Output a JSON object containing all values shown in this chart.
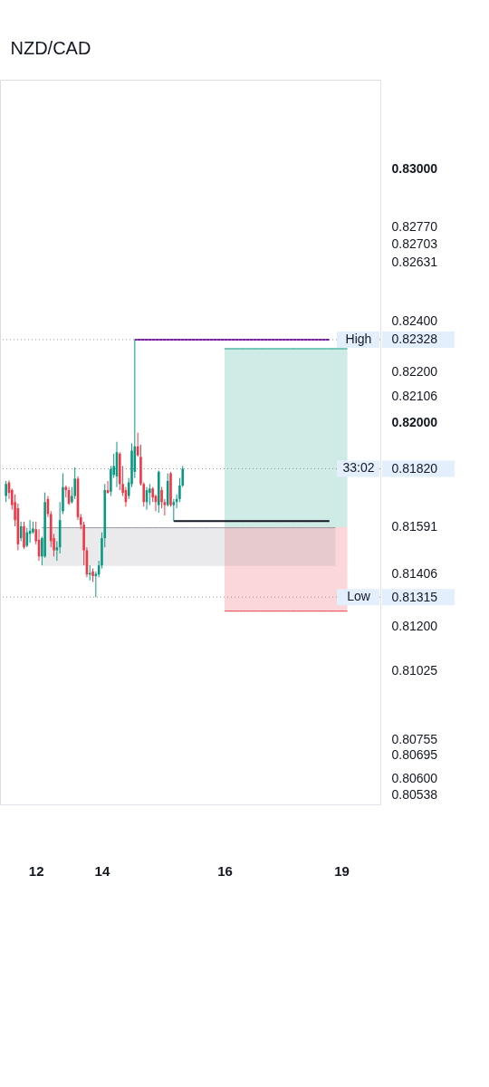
{
  "chart_data": {
    "type": "candlestick",
    "title": "NZD/CAD",
    "categories": [
      null,
      null,
      null,
      null,
      null,
      null,
      null,
      null,
      null,
      null,
      "12",
      null,
      null,
      null,
      null,
      null,
      null,
      null,
      null,
      null,
      null,
      null,
      null,
      null,
      null,
      null,
      null,
      null,
      null,
      null,
      null,
      null,
      "14",
      null,
      null,
      null,
      null,
      null,
      null,
      null,
      null,
      null,
      null,
      null,
      null,
      null,
      null,
      null,
      null,
      null,
      null,
      null,
      null,
      null,
      null,
      null,
      null,
      null,
      null,
      null,
      null,
      null,
      null,
      null,
      null,
      null,
      null,
      null,
      null,
      null,
      null,
      null,
      null,
      "16",
      null,
      null,
      null,
      null,
      null,
      null,
      null,
      null,
      null,
      null,
      null,
      null,
      null,
      null,
      null,
      null,
      null,
      null,
      null,
      null,
      null,
      null,
      null,
      null,
      null,
      null,
      null,
      null,
      null,
      null,
      null,
      null,
      null,
      null,
      null,
      null,
      null,
      null,
      "19",
      null,
      null,
      null,
      null,
      null,
      null,
      null,
      null,
      null,
      null,
      null
    ],
    "ohlc": [
      [
        0.81713,
        0.81772,
        0.81689,
        0.8176
      ],
      [
        0.81766,
        0.81774,
        0.81701,
        0.81725
      ],
      [
        0.81736,
        0.81742,
        0.81659,
        0.81677
      ],
      [
        0.81689,
        0.81719,
        0.81594,
        0.81618
      ],
      [
        0.81665,
        0.81683,
        0.81499,
        0.81523
      ],
      [
        0.81547,
        0.81612,
        0.81535,
        0.81594
      ],
      [
        0.81594,
        0.81612,
        0.81505,
        0.81511
      ],
      [
        0.81517,
        0.81588,
        0.81511,
        0.8157
      ],
      [
        0.81564,
        0.81618,
        0.81529,
        0.81576
      ],
      [
        0.8157,
        0.81612,
        0.81564,
        0.81585
      ],
      [
        0.81582,
        0.81612,
        0.81523,
        0.81535
      ],
      [
        0.81541,
        0.81582,
        0.81458,
        0.81475
      ],
      [
        0.81475,
        0.81553,
        0.8144,
        0.81547
      ],
      [
        0.81475,
        0.81727,
        0.8147,
        0.81689
      ],
      [
        0.81701,
        0.81713,
        0.8163,
        0.81642
      ],
      [
        0.81642,
        0.81653,
        0.81511,
        0.81535
      ],
      [
        0.81547,
        0.81564,
        0.81475,
        0.81499
      ],
      [
        0.81499,
        0.81535,
        0.81458,
        0.81511
      ],
      [
        0.81511,
        0.81689,
        0.81487,
        0.81618
      ],
      [
        0.81653,
        0.81802,
        0.81642,
        0.81748
      ],
      [
        0.81748,
        0.81754,
        0.81707,
        0.81736
      ],
      [
        0.81736,
        0.81748,
        0.81677,
        0.81683
      ],
      [
        0.81689,
        0.81748,
        0.81683,
        0.81713
      ],
      [
        0.81713,
        0.81825,
        0.81701,
        0.81781
      ],
      [
        0.81781,
        0.8179,
        0.81618,
        0.8163
      ],
      [
        0.8163,
        0.81642,
        0.81582,
        0.816
      ],
      [
        0.816,
        0.81612,
        0.8144,
        0.81499
      ],
      [
        0.81499,
        0.81511,
        0.81393,
        0.81404
      ],
      [
        0.81404,
        0.8144,
        0.81381,
        0.8141
      ],
      [
        0.81416,
        0.81428,
        0.81375,
        0.81398
      ],
      [
        0.81398,
        0.81416,
        0.81315,
        0.81407
      ],
      [
        0.81404,
        0.81458,
        0.81393,
        0.8144
      ],
      [
        0.8144,
        0.8157,
        0.81428,
        0.81547
      ],
      [
        0.81547,
        0.8176,
        0.81511,
        0.81736
      ],
      [
        0.81736,
        0.81772,
        0.81722,
        0.81725
      ],
      [
        0.8173,
        0.81831,
        0.81713,
        0.81819
      ],
      [
        0.81796,
        0.81879,
        0.81784,
        0.81831
      ],
      [
        0.8179,
        0.81926,
        0.81748,
        0.81885
      ],
      [
        0.81879,
        0.81885,
        0.81736,
        0.8176
      ],
      [
        0.8176,
        0.81831,
        0.81713,
        0.81725
      ],
      [
        0.81736,
        0.81748,
        0.81671,
        0.81689
      ],
      [
        0.81713,
        0.81784,
        0.81701,
        0.81766
      ],
      [
        0.8176,
        0.8192,
        0.81748,
        0.81891
      ],
      [
        0.81808,
        0.82328,
        0.81784,
        0.81908
      ],
      [
        0.81908,
        0.81962,
        0.81867,
        0.81873
      ],
      [
        0.81867,
        0.81914,
        0.81754,
        0.8176
      ],
      [
        0.8176,
        0.81766,
        0.81671,
        0.81689
      ],
      [
        0.81689,
        0.81748,
        0.81659,
        0.81736
      ],
      [
        0.81725,
        0.8176,
        0.81677,
        0.81742
      ],
      [
        0.81742,
        0.81748,
        0.81689,
        0.81707
      ],
      [
        0.81713,
        0.81719,
        0.81653,
        0.81689
      ],
      [
        0.81677,
        0.81813,
        0.81647,
        0.81808
      ],
      [
        0.81736,
        0.81748,
        0.81665,
        0.81689
      ],
      [
        0.81689,
        0.81701,
        0.81636,
        0.81677
      ],
      [
        0.81677,
        0.81802,
        0.81671,
        0.81772
      ],
      [
        0.81802,
        0.81808,
        0.81671,
        0.81677
      ],
      [
        0.81677,
        0.81701,
        0.81614,
        0.81689
      ],
      [
        0.81689,
        0.81719,
        0.81665,
        0.81701
      ],
      [
        0.81701,
        0.81784,
        0.81689,
        0.81754
      ],
      [
        0.81754,
        0.81831,
        0.81748,
        0.8182
      ],
      null,
      null,
      null,
      null,
      null,
      null,
      null,
      null,
      null,
      null,
      null,
      null,
      null,
      null,
      null,
      null,
      null,
      null,
      null,
      null,
      null,
      null,
      null,
      null,
      null,
      null,
      null,
      null,
      null,
      null,
      null,
      null,
      null,
      null,
      null,
      null,
      null,
      null,
      null,
      null,
      null,
      null,
      null,
      null,
      null,
      null,
      null,
      null,
      null,
      null,
      null,
      null,
      null,
      null,
      null,
      null,
      null,
      null,
      null,
      null,
      null,
      null,
      null,
      null
    ],
    "colors": [
      "#089981",
      "#f23645",
      "#f23645",
      "#f23645",
      "#f23645",
      "#089981",
      "#f23645",
      "#089981",
      "#089981",
      "#089981",
      "#f23645",
      "#f23645",
      "#089981",
      "#089981",
      "#f23645",
      "#f23645",
      "#f23645",
      "#089981",
      "#089981",
      "#089981",
      "#f23645",
      "#f23645",
      "#089981",
      "#089981",
      "#f23645",
      "#f23645",
      "#f23645",
      "#f23645",
      "#089981",
      "#f23645",
      "#089981",
      "#089981",
      "#089981",
      "#089981",
      "#f23645",
      "#089981",
      "#089981",
      "#089981",
      "#f23645",
      "#f23645",
      "#f23645",
      "#089981",
      "#089981",
      "#089981",
      "#f23645",
      "#f23645",
      "#f23645",
      "#089981",
      "#089981",
      "#f23645",
      "#f23645",
      "#089981",
      "#f23645",
      "#f23645",
      "#089981",
      "#f23645",
      "#089981",
      "#089981",
      "#089981",
      "#089981",
      null,
      null,
      null,
      null,
      null,
      null,
      null,
      null,
      null,
      null,
      null,
      null,
      null,
      null,
      null,
      null,
      null,
      null,
      null,
      null,
      null,
      null,
      null,
      null,
      null,
      null,
      null,
      null,
      null,
      null,
      null,
      null,
      null,
      null,
      null,
      null,
      null,
      null,
      null,
      null,
      null,
      null,
      null,
      null,
      null,
      null,
      null,
      null,
      null,
      null,
      null,
      null,
      null,
      null,
      null,
      null,
      null,
      null,
      null,
      null,
      null,
      null,
      null,
      null
    ],
    "series": [
      {
        "type": "line",
        "color": "#089981",
        "values": [
          null,
          null,
          null,
          null,
          null,
          null,
          null,
          null,
          null,
          null,
          null,
          null,
          null,
          null,
          null,
          null,
          null,
          null,
          null,
          null,
          null,
          null,
          null,
          null,
          null,
          null,
          null,
          null,
          null,
          null,
          null,
          null,
          null,
          null,
          null,
          null,
          null,
          null,
          null,
          null,
          null,
          null,
          null,
          null,
          null,
          null,
          null,
          null,
          null,
          null,
          null,
          null,
          null,
          null,
          null,
          null,
          null,
          null,
          null,
          null,
          null,
          null,
          null,
          null,
          null,
          null,
          null,
          null,
          null,
          null,
          null,
          null,
          null,
          0.82292,
          0.82292,
          0.82292,
          0.82292,
          0.82292,
          0.82292,
          0.82292,
          0.82292,
          0.82292,
          0.82292,
          0.82292,
          0.82292,
          0.82292,
          0.82292,
          0.82292,
          0.82292,
          0.82292,
          0.82292,
          0.82292,
          0.82292,
          0.82292,
          0.82292,
          0.82292,
          0.82292,
          0.82292,
          0.82292,
          0.82292,
          0.82292,
          0.82292,
          0.82292,
          0.82292,
          0.82292,
          0.82292,
          0.82292,
          0.82292,
          0.82292,
          0.82292,
          0.82292,
          0.82292,
          0.82292,
          0.82292,
          0.82292,
          null,
          null,
          null,
          null,
          null,
          null,
          null,
          null,
          null
        ],
        "upper": [
          null,
          null,
          null,
          null,
          null,
          null,
          null,
          null,
          null,
          null,
          null,
          null,
          null,
          null,
          null,
          null,
          null,
          null,
          null,
          null,
          null,
          null,
          null,
          null,
          null,
          null,
          null,
          null,
          null,
          null,
          null,
          null,
          null,
          null,
          null,
          null,
          null,
          null,
          null,
          null,
          null,
          null,
          null,
          null,
          null,
          null,
          null,
          null,
          null,
          null,
          null,
          null,
          null,
          null,
          null,
          null,
          null,
          null,
          null,
          null,
          null,
          null,
          null,
          null,
          null,
          null,
          null,
          null,
          null,
          null,
          null,
          null,
          null,
          0.82292,
          0.82292,
          0.82292,
          0.82292,
          0.82292,
          0.82292,
          0.82292,
          0.82292,
          0.82292,
          0.82292,
          0.82292,
          0.82292,
          0.82292,
          0.82292,
          0.82292,
          0.82292,
          0.82292,
          0.82292,
          0.82292,
          0.82292,
          0.82292,
          0.82292,
          0.82292,
          0.82292,
          0.82292,
          0.82292,
          0.82292,
          0.82292,
          0.82292,
          0.82292,
          0.82292,
          0.82292,
          0.82292,
          0.82292,
          0.82292,
          0.82292,
          0.82292,
          0.82292,
          0.82292,
          0.82292,
          0.82292,
          0.82292,
          null,
          null,
          null,
          null,
          null,
          null,
          null,
          null,
          null
        ],
        "lower": [
          null,
          null,
          null,
          null,
          null,
          null,
          null,
          null,
          null,
          null,
          null,
          null,
          null,
          null,
          null,
          null,
          null,
          null,
          null,
          null,
          null,
          null,
          null,
          null,
          null,
          null,
          null,
          null,
          null,
          null,
          null,
          null,
          null,
          null,
          null,
          null,
          null,
          null,
          null,
          null,
          null,
          null,
          null,
          null,
          null,
          null,
          null,
          null,
          null,
          null,
          null,
          null,
          null,
          null,
          null,
          null,
          null,
          null,
          null,
          null,
          null,
          null,
          null,
          null,
          null,
          null,
          null,
          null,
          null,
          null,
          null,
          null,
          null,
          0.81591,
          0.81591,
          0.81591,
          0.81591,
          0.81591,
          0.81591,
          0.81591,
          0.81591,
          0.81591,
          0.81591,
          0.81591,
          0.81591,
          0.81591,
          0.81591,
          0.81591,
          0.81591,
          0.81591,
          0.81591,
          0.81591,
          0.81591,
          0.81591,
          0.81591,
          0.81591,
          0.81591,
          0.81591,
          0.81591,
          0.81591,
          0.81591,
          0.81591,
          0.81591,
          0.81591,
          0.81591,
          0.81591,
          0.81591,
          0.81591,
          0.81591,
          0.81591,
          0.81591,
          0.81591,
          0.81591,
          0.81591,
          0.81591,
          null,
          null,
          null,
          null,
          null,
          null,
          null,
          null,
          null
        ]
      },
      {
        "type": "line",
        "color": "#f23645",
        "values": [
          null,
          null,
          null,
          null,
          null,
          null,
          null,
          null,
          null,
          null,
          null,
          null,
          null,
          null,
          null,
          null,
          null,
          null,
          null,
          null,
          null,
          null,
          null,
          null,
          null,
          null,
          null,
          null,
          null,
          null,
          null,
          null,
          null,
          null,
          null,
          null,
          null,
          null,
          null,
          null,
          null,
          null,
          null,
          null,
          null,
          null,
          null,
          null,
          null,
          null,
          null,
          null,
          null,
          null,
          null,
          null,
          null,
          null,
          null,
          null,
          null,
          null,
          null,
          null,
          null,
          null,
          null,
          null,
          null,
          null,
          null,
          null,
          null,
          0.8126,
          0.8126,
          0.8126,
          0.8126,
          0.8126,
          0.8126,
          0.8126,
          0.8126,
          0.8126,
          0.8126,
          0.8126,
          0.8126,
          0.8126,
          0.8126,
          0.8126,
          0.8126,
          0.8126,
          0.8126,
          0.8126,
          0.8126,
          0.8126,
          0.8126,
          0.8126,
          0.8126,
          0.8126,
          0.8126,
          0.8126,
          0.8126,
          0.8126,
          0.8126,
          0.8126,
          0.8126,
          0.8126,
          0.8126,
          0.8126,
          0.8126,
          0.8126,
          0.8126,
          0.8126,
          0.8126,
          0.8126,
          0.8126,
          null,
          null,
          null,
          null,
          null,
          null,
          null,
          null,
          null
        ],
        "upper": [
          null,
          null,
          null,
          null,
          null,
          null,
          null,
          null,
          null,
          null,
          null,
          null,
          null,
          null,
          null,
          null,
          null,
          null,
          null,
          null,
          null,
          null,
          null,
          null,
          null,
          null,
          null,
          null,
          null,
          null,
          null,
          null,
          null,
          null,
          null,
          null,
          null,
          null,
          null,
          null,
          null,
          null,
          null,
          null,
          null,
          null,
          null,
          null,
          null,
          null,
          null,
          null,
          null,
          null,
          null,
          null,
          null,
          null,
          null,
          null,
          null,
          null,
          null,
          null,
          null,
          null,
          null,
          null,
          null,
          null,
          null,
          null,
          null,
          0.81591,
          0.81591,
          0.81591,
          0.81591,
          0.81591,
          0.81591,
          0.81591,
          0.81591,
          0.81591,
          0.81591,
          0.81591,
          0.81591,
          0.81591,
          0.81591,
          0.81591,
          0.81591,
          0.81591,
          0.81591,
          0.81591,
          0.81591,
          0.81591,
          0.81591,
          0.81591,
          0.81591,
          0.81591,
          0.81591,
          0.81591,
          0.81591,
          0.81591,
          0.81591,
          0.81591,
          0.81591,
          0.81591,
          0.81591,
          0.81591,
          0.81591,
          0.81591,
          0.81591,
          0.81591,
          0.81591,
          0.81591,
          0.81591,
          null,
          null,
          null,
          null,
          null,
          null,
          null,
          null,
          null
        ],
        "lower": [
          null,
          null,
          null,
          null,
          null,
          null,
          null,
          null,
          null,
          null,
          null,
          null,
          null,
          null,
          null,
          null,
          null,
          null,
          null,
          null,
          null,
          null,
          null,
          null,
          null,
          null,
          null,
          null,
          null,
          null,
          null,
          null,
          null,
          null,
          null,
          null,
          null,
          null,
          null,
          null,
          null,
          null,
          null,
          null,
          null,
          null,
          null,
          null,
          null,
          null,
          null,
          null,
          null,
          null,
          null,
          null,
          null,
          null,
          null,
          null,
          null,
          null,
          null,
          null,
          null,
          null,
          null,
          null,
          null,
          null,
          null,
          null,
          null,
          0.8126,
          0.8126,
          0.8126,
          0.8126,
          0.8126,
          0.8126,
          0.8126,
          0.8126,
          0.8126,
          0.8126,
          0.8126,
          0.8126,
          0.8126,
          0.8126,
          0.8126,
          0.8126,
          0.8126,
          0.8126,
          0.8126,
          0.8126,
          0.8126,
          0.8126,
          0.8126,
          0.8126,
          0.8126,
          0.8126,
          0.8126,
          0.8126,
          0.8126,
          0.8126,
          0.8126,
          0.8126,
          0.8126,
          0.8126,
          0.8126,
          0.8126,
          0.8126,
          0.8126,
          0.8126,
          0.8126,
          0.8126,
          0.8126,
          null,
          null,
          null,
          null,
          null,
          null,
          null,
          null,
          null
        ]
      },
      {
        "type": "line",
        "color": "#9598a1",
        "values": [
          null,
          null,
          null,
          null,
          null,
          null,
          null,
          null,
          null,
          null,
          null,
          null,
          0.81588,
          0.81588,
          0.81588,
          0.81588,
          0.81588,
          0.81588,
          0.81588,
          0.81588,
          0.81588,
          0.81588,
          0.81588,
          0.81588,
          0.81588,
          0.81588,
          0.81588,
          0.81588,
          0.81588,
          0.81588,
          0.81588,
          0.81588,
          0.81588,
          0.81588,
          0.81588,
          0.81588,
          0.81588,
          0.81588,
          0.81588,
          0.81588,
          0.81588,
          0.81588,
          0.81588,
          0.81588,
          0.81588,
          0.81588,
          0.81588,
          0.81588,
          0.81588,
          0.81588,
          0.81588,
          0.81588,
          0.81588,
          0.81588,
          0.81588,
          0.81588,
          0.81588,
          0.81588,
          0.81588,
          0.81588,
          0.81588,
          0.81588,
          0.81588,
          0.81588,
          0.81588,
          0.81588,
          0.81588,
          0.81588,
          0.81588,
          0.81588,
          0.81588,
          0.81588,
          0.81588,
          0.81588,
          0.81588,
          0.81588,
          0.81588,
          0.81588,
          0.81588,
          0.81588,
          0.81588,
          0.81588,
          0.81588,
          0.81588,
          0.81588,
          0.81588,
          0.81588,
          0.81588,
          0.81588,
          0.81588,
          0.81588,
          0.81588,
          0.81588,
          0.81588,
          0.81588,
          0.81588,
          0.81588,
          0.81588,
          0.81588,
          0.81588,
          0.81588,
          0.81588,
          0.81588,
          0.81588,
          0.81588,
          0.81588,
          0.81588,
          0.81588,
          0.81588,
          0.81588,
          0.81588,
          null,
          null,
          null,
          null,
          null,
          null,
          null,
          null,
          null,
          null,
          null,
          null,
          null
        ],
        "upper": [
          null,
          null,
          null,
          null,
          null,
          null,
          null,
          null,
          null,
          null,
          null,
          null,
          0.81588,
          0.81588,
          0.81588,
          0.81588,
          0.81588,
          0.81588,
          0.81588,
          0.81588,
          0.81588,
          0.81588,
          0.81588,
          0.81588,
          0.81588,
          0.81588,
          0.81588,
          0.81588,
          0.81588,
          0.81588,
          0.81588,
          0.81588,
          0.81588,
          0.81588,
          0.81588,
          0.81588,
          0.81588,
          0.81588,
          0.81588,
          0.81588,
          0.81588,
          0.81588,
          0.81588,
          0.81588,
          0.81588,
          0.81588,
          0.81588,
          0.81588,
          0.81588,
          0.81588,
          0.81588,
          0.81588,
          0.81588,
          0.81588,
          0.81588,
          0.81588,
          0.81588,
          0.81588,
          0.81588,
          0.81588,
          0.81588,
          0.81588,
          0.81588,
          0.81588,
          0.81588,
          0.81588,
          0.81588,
          0.81588,
          0.81588,
          0.81588,
          0.81588,
          0.81588,
          0.81588,
          0.81588,
          0.81588,
          0.81588,
          0.81588,
          0.81588,
          0.81588,
          0.81588,
          0.81588,
          0.81588,
          0.81588,
          0.81588,
          0.81588,
          0.81588,
          0.81588,
          0.81588,
          0.81588,
          0.81588,
          0.81588,
          0.81588,
          0.81588,
          0.81588,
          0.81588,
          0.81588,
          0.81588,
          0.81588,
          0.81588,
          0.81588,
          0.81588,
          0.81588,
          0.81588,
          0.81588,
          0.81588,
          0.81588,
          0.81588,
          0.81588,
          0.81588,
          0.81588,
          0.81588,
          null,
          null,
          null,
          null,
          null,
          null,
          null,
          null,
          null,
          null,
          null,
          null,
          null
        ],
        "lower": [
          null,
          null,
          null,
          null,
          null,
          null,
          null,
          null,
          null,
          null,
          null,
          null,
          0.81438,
          0.81438,
          0.81438,
          0.81438,
          0.81438,
          0.81438,
          0.81438,
          0.81438,
          0.81438,
          0.81438,
          0.81438,
          0.81438,
          0.81438,
          0.81438,
          0.81438,
          0.81438,
          0.81438,
          0.81438,
          0.81438,
          0.81438,
          0.81438,
          0.81438,
          0.81438,
          0.81438,
          0.81438,
          0.81438,
          0.81438,
          0.81438,
          0.81438,
          0.81438,
          0.81438,
          0.81438,
          0.81438,
          0.81438,
          0.81438,
          0.81438,
          0.81438,
          0.81438,
          0.81438,
          0.81438,
          0.81438,
          0.81438,
          0.81438,
          0.81438,
          0.81438,
          0.81438,
          0.81438,
          0.81438,
          0.81438,
          0.81438,
          0.81438,
          0.81438,
          0.81438,
          0.81438,
          0.81438,
          0.81438,
          0.81438,
          0.81438,
          0.81438,
          0.81438,
          0.81438,
          0.81438,
          0.81438,
          0.81438,
          0.81438,
          0.81438,
          0.81438,
          0.81438,
          0.81438,
          0.81438,
          0.81438,
          0.81438,
          0.81438,
          0.81438,
          0.81438,
          0.81438,
          0.81438,
          0.81438,
          0.81438,
          0.81438,
          0.81438,
          0.81438,
          0.81438,
          0.81438,
          0.81438,
          0.81438,
          0.81438,
          0.81438,
          0.81438,
          0.81438,
          0.81438,
          0.81438,
          0.81438,
          0.81438,
          0.81438,
          0.81438,
          0.81438,
          0.81438,
          0.81438,
          null,
          null,
          null,
          null,
          null,
          null,
          null,
          null,
          null,
          null,
          null,
          null,
          null
        ]
      },
      {
        "type": "line",
        "color": "#7b1fa2",
        "values": [
          null,
          null,
          null,
          null,
          null,
          null,
          null,
          null,
          null,
          null,
          null,
          null,
          null,
          null,
          null,
          null,
          null,
          null,
          null,
          null,
          null,
          null,
          null,
          null,
          null,
          null,
          null,
          null,
          null,
          null,
          null,
          null,
          null,
          null,
          null,
          null,
          null,
          null,
          null,
          null,
          null,
          null,
          null,
          0.82328,
          0.82328,
          0.82328,
          0.82328,
          0.82328,
          0.82328,
          0.82328,
          0.82328,
          0.82328,
          0.82328,
          0.82328,
          0.82328,
          0.82328,
          0.82328,
          0.82328,
          0.82328,
          0.82328,
          0.82328,
          0.82328,
          0.82328,
          0.82328,
          0.82328,
          0.82328,
          0.82328,
          0.82328,
          0.82328,
          0.82328,
          0.82328,
          0.82328,
          0.82328,
          0.82328,
          0.82328,
          0.82328,
          0.82328,
          0.82328,
          0.82328,
          0.82328,
          0.82328,
          0.82328,
          0.82328,
          0.82328,
          0.82328,
          0.82328,
          0.82328,
          0.82328,
          0.82328,
          0.82328,
          0.82328,
          0.82328,
          0.82328,
          0.82328,
          0.82328,
          0.82328,
          0.82328,
          0.82328,
          0.82328,
          0.82328,
          0.82328,
          0.82328,
          0.82328,
          0.82328,
          0.82328,
          0.82328,
          0.82328,
          0.82328,
          0.82328,
          null,
          null,
          null,
          null,
          null,
          null,
          null,
          null,
          null,
          null,
          null,
          null,
          null,
          null,
          null
        ]
      },
      {
        "type": "line",
        "color": "#131722",
        "values": [
          null,
          null,
          null,
          null,
          null,
          null,
          null,
          null,
          null,
          null,
          null,
          null,
          null,
          null,
          null,
          null,
          null,
          null,
          null,
          null,
          null,
          null,
          null,
          null,
          null,
          null,
          null,
          null,
          null,
          null,
          null,
          null,
          null,
          null,
          null,
          null,
          null,
          null,
          null,
          null,
          null,
          null,
          null,
          null,
          null,
          null,
          null,
          null,
          null,
          null,
          null,
          null,
          null,
          null,
          null,
          null,
          0.81614,
          0.81614,
          0.81614,
          0.81614,
          0.81614,
          0.81614,
          0.81614,
          0.81614,
          0.81614,
          0.81614,
          0.81614,
          0.81614,
          0.81614,
          0.81614,
          0.81614,
          0.81614,
          0.81614,
          0.81614,
          0.81614,
          0.81614,
          0.81614,
          0.81614,
          0.81614,
          0.81614,
          0.81614,
          0.81614,
          0.81614,
          0.81614,
          0.81614,
          0.81614,
          0.81614,
          0.81614,
          0.81614,
          0.81614,
          0.81614,
          0.81614,
          0.81614,
          0.81614,
          0.81614,
          0.81614,
          0.81614,
          0.81614,
          0.81614,
          0.81614,
          0.81614,
          0.81614,
          0.81614,
          0.81614,
          0.81614,
          0.81614,
          0.81614,
          0.81614,
          0.81614,
          null,
          null,
          null,
          null,
          null,
          null,
          null,
          null,
          null,
          null,
          null,
          null,
          null,
          null,
          null
        ]
      }
    ],
    "ref_lines": [
      {
        "axis": "y",
        "value": 0.82328,
        "label": "High",
        "color": "#9598a1",
        "line_style": "dotted"
      },
      {
        "axis": "y",
        "value": 0.8182,
        "color": "#9598a1",
        "line_style": "dotted"
      },
      {
        "axis": "y",
        "value": 0.81315,
        "label": "Low",
        "color": "#9598a1",
        "line_style": "dotted"
      }
    ],
    "annotations": [
      "33:02"
    ],
    "ylim": [
      0.805,
      0.8335
    ],
    "yticks": [
      {
        "value": 0.80538,
        "label": "0.80538"
      },
      {
        "value": 0.806,
        "label": "0.80600"
      },
      {
        "value": 0.80695,
        "label": "0.80695"
      },
      {
        "value": 0.80755,
        "label": "0.80755"
      },
      {
        "value": 0.81025,
        "label": "0.81025"
      },
      {
        "value": 0.812,
        "label": "0.81200"
      },
      {
        "value": 0.81315,
        "label": "0.81315"
      },
      {
        "value": 0.81406,
        "label": "0.81406"
      },
      {
        "value": 0.81591,
        "label": "0.81591"
      },
      {
        "value": 0.8182,
        "label": "0.81820"
      },
      {
        "value": 0.82,
        "label": "0.82000"
      },
      {
        "value": 0.82106,
        "label": "0.82106"
      },
      {
        "value": 0.822,
        "label": "0.82200"
      },
      {
        "value": 0.82328,
        "label": "0.82328"
      },
      {
        "value": 0.824,
        "label": "0.82400"
      },
      {
        "value": 0.82631,
        "label": "0.82631"
      },
      {
        "value": 0.82703,
        "label": "0.82703"
      },
      {
        "value": 0.8277,
        "label": "0.82770"
      },
      {
        "value": 0.83,
        "label": "0.83000"
      }
    ]
  }
}
